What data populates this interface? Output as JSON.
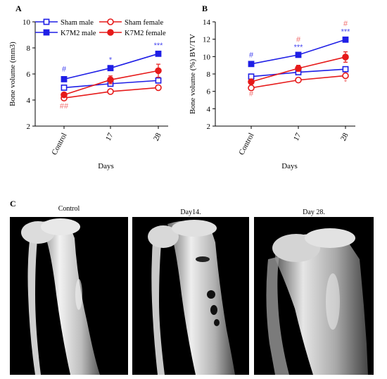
{
  "colors": {
    "blue": "#1f1fe6",
    "red": "#e61a1a",
    "blue_sig": "#4a4af0",
    "red_sig": "#f07070"
  },
  "panels": {
    "a": "A",
    "b": "B",
    "c": "C"
  },
  "chart_data": [
    {
      "id": "A",
      "type": "line",
      "ylabel": "Bone volume (mm3)",
      "xlabel": "Days",
      "categories": [
        "Control",
        "17",
        "28"
      ],
      "ylim": [
        2,
        10
      ],
      "yticks": [
        2,
        4,
        6,
        8,
        10
      ],
      "legend_position": "top",
      "series": [
        {
          "name": "Sham male",
          "color": "blue",
          "marker": "square-open",
          "values": [
            4.95,
            5.25,
            5.5
          ],
          "errors": [
            0.1,
            0.1,
            0.1
          ]
        },
        {
          "name": "K7M2 male",
          "color": "blue",
          "marker": "square-filled",
          "values": [
            5.6,
            6.45,
            7.55
          ],
          "errors": [
            0.12,
            0.15,
            0.1
          ]
        },
        {
          "name": "Sham female",
          "color": "red",
          "marker": "circle-open",
          "values": [
            4.15,
            4.65,
            4.95
          ],
          "errors": [
            0.1,
            0.12,
            0.1
          ]
        },
        {
          "name": "K7M2 female",
          "color": "red",
          "marker": "circle-filled",
          "values": [
            4.4,
            5.55,
            6.25
          ],
          "errors": [
            0.15,
            0.3,
            0.5
          ]
        }
      ],
      "annotations": [
        {
          "text": "#",
          "color": "blue_sig",
          "category": "Control",
          "y": 6.2
        },
        {
          "text": "*",
          "color": "blue_sig",
          "category": "17",
          "y": 6.9
        },
        {
          "text": "***",
          "color": "blue_sig",
          "category": "28",
          "y": 8.0
        },
        {
          "text": "##",
          "color": "red_sig",
          "category": "Control",
          "y": 3.35
        }
      ]
    },
    {
      "id": "B",
      "type": "line",
      "ylabel": "Bone volume (%) BV/TV",
      "xlabel": "Days",
      "categories": [
        "Control",
        "17",
        "28"
      ],
      "ylim": [
        2,
        14
      ],
      "yticks": [
        2,
        4,
        6,
        8,
        10,
        12,
        14
      ],
      "series": [
        {
          "name": "Sham male",
          "color": "blue",
          "marker": "square-open",
          "values": [
            7.7,
            8.2,
            8.55
          ],
          "errors": [
            0.15,
            0.15,
            0.15
          ]
        },
        {
          "name": "K7M2 male",
          "color": "blue",
          "marker": "square-filled",
          "values": [
            9.15,
            10.2,
            11.95
          ],
          "errors": [
            0.25,
            0.2,
            0.15
          ]
        },
        {
          "name": "Sham female",
          "color": "red",
          "marker": "circle-open",
          "values": [
            6.4,
            7.3,
            7.8
          ],
          "errors": [
            0.15,
            0.15,
            0.2
          ]
        },
        {
          "name": "K7M2 female",
          "color": "red",
          "marker": "circle-filled",
          "values": [
            7.1,
            8.65,
            9.95
          ],
          "errors": [
            0.15,
            0.35,
            0.6
          ]
        }
      ],
      "annotations": [
        {
          "text": "#",
          "color": "blue_sig",
          "category": "Control",
          "y": 9.9
        },
        {
          "text": "***",
          "color": "blue_sig",
          "category": "17",
          "y": 10.8
        },
        {
          "text": "***",
          "color": "blue_sig",
          "category": "28",
          "y": 12.6
        },
        {
          "text": "#",
          "color": "red_sig",
          "category": "Control",
          "y": 5.45
        },
        {
          "text": "#",
          "color": "red_sig",
          "category": "17",
          "y": 11.7
        },
        {
          "text": "#",
          "color": "red_sig",
          "category": "28",
          "y": 13.5
        },
        {
          "text": "*",
          "color": "red_sig",
          "category": "28",
          "y": 6.8
        }
      ]
    }
  ],
  "images": [
    {
      "label": "Control"
    },
    {
      "label": "Day14."
    },
    {
      "label": "Day 28."
    }
  ]
}
